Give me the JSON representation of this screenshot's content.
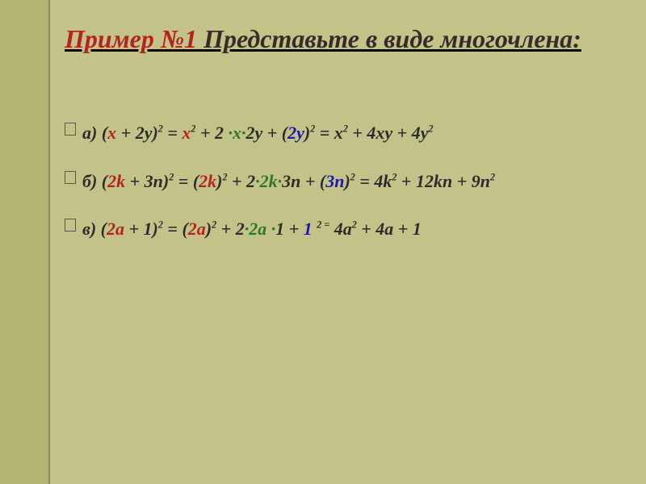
{
  "colors": {
    "slide_bg": "#c3c389",
    "stripe_bg": "#b3b374",
    "stripe_border": "#8a8a60",
    "title_primary": "#b42323",
    "title_secondary": "#3a2a2a",
    "text_dark": "#2c2c2c",
    "text_green": "#2a7a2a",
    "text_red": "#b42323",
    "text_navy": "#1a1aaa"
  },
  "typography": {
    "title_fontsize": 32,
    "title_style": "italic bold underline",
    "content_fontsize": 22,
    "font_family": "Times New Roman"
  },
  "title": {
    "part1": "Пример №1 ",
    "part2": "Представьте в виде многочлена:"
  },
  "items": {
    "a": {
      "label": " а) (",
      "t1": "х",
      "t2": " + 2у)",
      "exp1": "2",
      "t3": " = ",
      "t4": "х",
      "exp2": "2",
      "t5": " + 2 ",
      "t6": "·х·",
      "t7": "2у + (",
      "t8": "2у",
      "t9": ")",
      "exp3": "2",
      "t10": "  = х",
      "exp4": "2",
      "t11": "  + 4ху + 4у",
      "exp5": "2"
    },
    "b": {
      "label": " б) (",
      "t1": "2k",
      "t2": " + 3n)",
      "exp1": "2",
      "t3": " = (",
      "t4": "2k",
      "t5": ")",
      "exp2": "2",
      "t6": " + 2",
      "t7": "·2k·",
      "t8": "3n + (",
      "t9": "3n",
      "t10": ")",
      "exp3": "2",
      "t11": " = 4k",
      "exp4": "2",
      "t12": " +  12kn + 9n",
      "exp5": "2"
    },
    "c": {
      "label": " в)  (",
      "t1": "2а",
      "t2": " + 1)",
      "exp1": "2",
      "t3": "  = (",
      "t4": "2а",
      "t5": ")",
      "exp2": "2",
      "t6": "  + 2",
      "t7": "·2а ·",
      "t8": "1 + ",
      "t9": "1 ",
      "exp3eq": "2 =",
      "t10": "    4а",
      "exp4": "2",
      "t11": " + 4а + 1"
    }
  }
}
